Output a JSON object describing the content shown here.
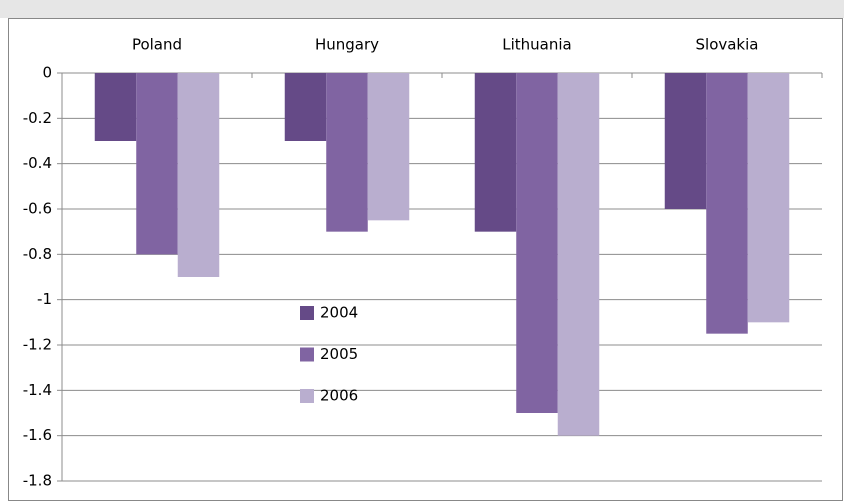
{
  "chart_data": {
    "type": "bar",
    "categories": [
      "Poland",
      "Hungary",
      "Lithuania",
      "Slovakia"
    ],
    "series": [
      {
        "name": "2004",
        "color": "#654a87",
        "values": [
          -0.3,
          -0.3,
          -0.7,
          -0.6
        ]
      },
      {
        "name": "2005",
        "color": "#8064a2",
        "values": [
          -0.8,
          -0.7,
          -1.5,
          -1.15
        ]
      },
      {
        "name": "2006",
        "color": "#b9aecf",
        "values": [
          -0.9,
          -0.65,
          -1.6,
          -1.1
        ]
      }
    ],
    "ylim": [
      -1.8,
      0
    ],
    "yticks": [
      0,
      -0.2,
      -0.4,
      -0.6,
      -0.8,
      -1,
      -1.2,
      -1.4,
      -1.6,
      -1.8
    ],
    "grid": true,
    "legend": "center"
  }
}
